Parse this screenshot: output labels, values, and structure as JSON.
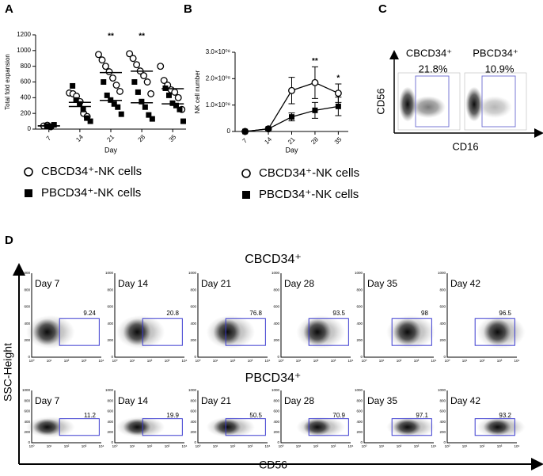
{
  "panels": [
    "A",
    "B",
    "C",
    "D"
  ],
  "chart_data": [
    {
      "type": "scatter",
      "xlabel": "Day",
      "ylabel": "Total fold expansion",
      "xlim": [
        4,
        38
      ],
      "xticks": [
        7,
        14,
        21,
        28,
        35
      ],
      "ylim": [
        0,
        1200
      ],
      "yticks": [
        0,
        200,
        400,
        600,
        800,
        1000,
        1200
      ],
      "series": [
        {
          "name": "CBCD34⁺-NK cells",
          "marker": "circle",
          "color": "#000000",
          "x": [
            7,
            7,
            7,
            14,
            14,
            14,
            14,
            14,
            14,
            21,
            21,
            21,
            21,
            21,
            21,
            21,
            28,
            28,
            28,
            28,
            28,
            28,
            28,
            35,
            35,
            35,
            35,
            35,
            35,
            35
          ],
          "values": [
            40,
            50,
            30,
            460,
            450,
            420,
            350,
            200,
            160,
            950,
            880,
            800,
            730,
            650,
            560,
            480,
            960,
            900,
            820,
            740,
            680,
            600,
            450,
            800,
            620,
            560,
            500,
            470,
            400,
            250
          ],
          "means": [
            40,
            340,
            720,
            737,
            514
          ]
        },
        {
          "name": "PBCD34⁺-NK cells",
          "marker": "square",
          "color": "#000000",
          "x": [
            7,
            7,
            7,
            14,
            14,
            14,
            14,
            14,
            14,
            21,
            21,
            21,
            21,
            21,
            21,
            28,
            28,
            28,
            28,
            28,
            28,
            35,
            35,
            35,
            35,
            35,
            35
          ],
          "values": [
            40,
            30,
            55,
            550,
            370,
            320,
            250,
            140,
            100,
            600,
            430,
            370,
            320,
            280,
            190,
            600,
            470,
            350,
            280,
            180,
            130,
            520,
            430,
            330,
            300,
            250,
            100
          ],
          "means": [
            42,
            288,
            365,
            335,
            322
          ]
        }
      ],
      "annotations": [
        {
          "x": 21,
          "text": "**"
        },
        {
          "x": 28,
          "text": "**"
        }
      ]
    },
    {
      "type": "line",
      "xlabel": "Day",
      "ylabel": "NK cell number",
      "xlim": [
        4,
        38
      ],
      "xticks": [
        7,
        14,
        21,
        28,
        35
      ],
      "ylim": [
        0,
        300000000
      ],
      "yticks": [
        0,
        {
          "value": 100000000,
          "label": "1.0×10⁰⁸"
        },
        {
          "value": 200000000,
          "label": "2.0×10⁰⁸"
        },
        {
          "value": 300000000,
          "label": "3.0×10⁰⁸"
        }
      ],
      "series": [
        {
          "name": "CBCD34⁺-NK cells",
          "marker": "circle",
          "color": "#000000",
          "x": [
            7,
            14,
            21,
            28,
            35
          ],
          "values": [
            0,
            10000000,
            155000000,
            185000000,
            145000000
          ],
          "errors": [
            0,
            5000000,
            50000000,
            60000000,
            35000000
          ]
        },
        {
          "name": "PBCD34⁺-NK cells",
          "marker": "square",
          "color": "#000000",
          "x": [
            7,
            14,
            21,
            28,
            35
          ],
          "values": [
            0,
            10000000,
            55000000,
            80000000,
            95000000
          ],
          "errors": [
            0,
            3000000,
            15000000,
            30000000,
            35000000
          ]
        }
      ],
      "annotations": [
        {
          "x": 28,
          "text": "**"
        },
        {
          "x": 35,
          "text": "*"
        }
      ]
    }
  ],
  "flow_c": {
    "x_label": "CD16",
    "y_label": "CD56",
    "plots": [
      {
        "title": "CBCD34⁺",
        "gate": "21.8%"
      },
      {
        "title": "PBCD34⁺",
        "gate": "10.9%"
      }
    ]
  },
  "flow_d": {
    "x_label": "CD56",
    "y_label": "SSC-Height",
    "xticks": [
      "10⁰",
      "10¹",
      "10²",
      "10³",
      "10⁴"
    ],
    "yticks": [
      0,
      200,
      400,
      600,
      800,
      1000
    ],
    "groups": [
      {
        "title": "CBCD34⁺",
        "plots": [
          {
            "day": "Day 7",
            "gate": 9.24
          },
          {
            "day": "Day 14",
            "gate": 20.8
          },
          {
            "day": "Day 21",
            "gate": 76.8
          },
          {
            "day": "Day 28",
            "gate": 93.5
          },
          {
            "day": "Day 35",
            "gate": 98
          },
          {
            "day": "Day 42",
            "gate": 96.5
          }
        ]
      },
      {
        "title": "PBCD34⁺",
        "plots": [
          {
            "day": "Day 7",
            "gate": 11.2
          },
          {
            "day": "Day 14",
            "gate": 19.9
          },
          {
            "day": "Day 21",
            "gate": 50.5
          },
          {
            "day": "Day 28",
            "gate": 70.9
          },
          {
            "day": "Day 35",
            "gate": 97.1
          },
          {
            "day": "Day 42",
            "gate": 93.2
          }
        ]
      }
    ]
  }
}
